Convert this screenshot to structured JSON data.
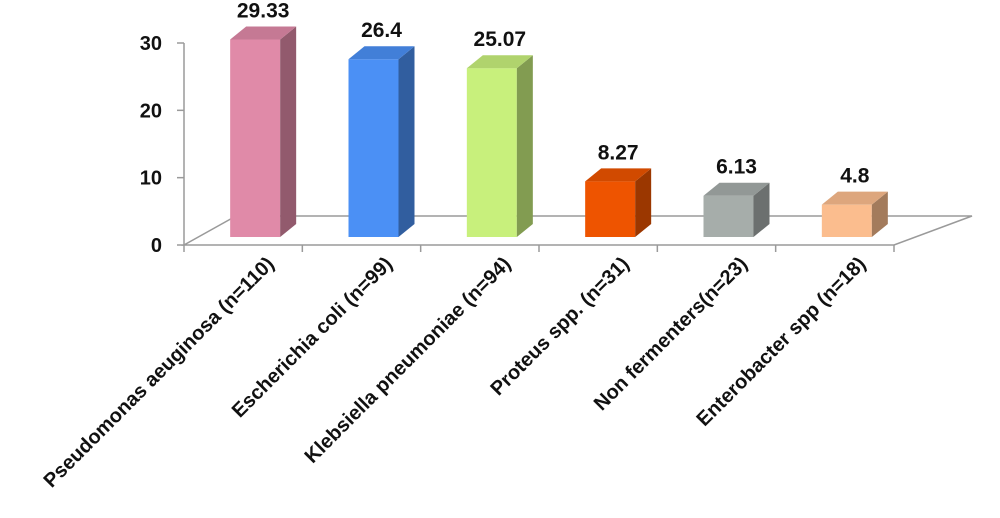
{
  "chart_data": {
    "type": "bar",
    "title": "",
    "xlabel": "",
    "ylabel": "",
    "ylim": [
      0,
      30
    ],
    "yticks": [
      0,
      10,
      20,
      30
    ],
    "grid": false,
    "style": "3d-column",
    "categories": [
      "Pseudomonas aeuginosa (n=110)",
      "Escherichia coli (n=99)",
      "Klebsiella pneumoniae (n=94)",
      "Proteus spp. (n=31)",
      "Non fermenters(n=23)",
      "Enterobacter spp (n=18)"
    ],
    "values": [
      29.33,
      26.4,
      25.07,
      8.27,
      6.13,
      4.8
    ],
    "data_labels": [
      "29.33",
      "26.4",
      "25.07",
      "8.27",
      "6.13",
      "4.8"
    ],
    "colors": [
      "#e08aa8",
      "#4b90f5",
      "#c8f07c",
      "#ee5400",
      "#a6adaa",
      "#fbbd8e"
    ]
  }
}
